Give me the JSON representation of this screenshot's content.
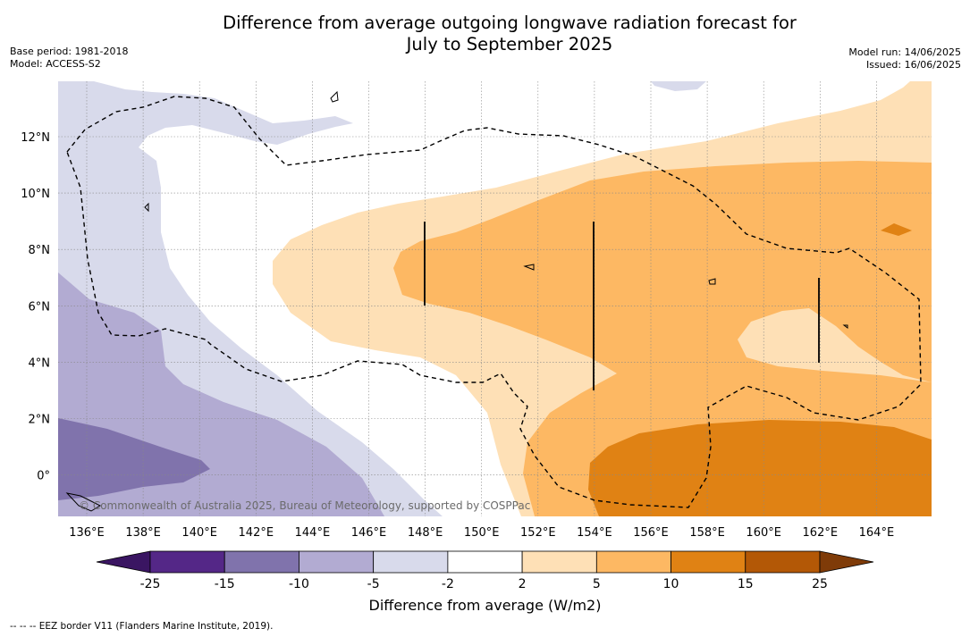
{
  "title": {
    "line1": "Difference from average outgoing longwave radiation forecast for",
    "line2": "July to September 2025"
  },
  "meta_left": {
    "base_period": "Base period: 1981-2018",
    "model": "Model: ACCESS-S2"
  },
  "meta_right": {
    "model_run": "Model run: 14/06/2025",
    "issued": "Issued: 16/06/2025"
  },
  "map": {
    "lon_labels": [
      "136°E",
      "138°E",
      "140°E",
      "142°E",
      "144°E",
      "146°E",
      "148°E",
      "150°E",
      "152°E",
      "154°E",
      "156°E",
      "158°E",
      "160°E",
      "162°E",
      "164°E"
    ],
    "lat_labels": [
      "12°N",
      "10°N",
      "8°N",
      "6°N",
      "4°N",
      "2°N",
      "0°"
    ],
    "copyright": "© Commonwealth of Australia 2025, Bureau of Meteorology, supported by COSPPac"
  },
  "colorbar": {
    "ticks": [
      "-25",
      "-15",
      "-10",
      "-5",
      "-2",
      "2",
      "5",
      "10",
      "15",
      "25"
    ],
    "colors": [
      "#3a1562",
      "#542787",
      "#8073ac",
      "#b2abd2",
      "#d8daeb",
      "#ffffff",
      "#fee0b6",
      "#fdb863",
      "#e08214",
      "#b35806",
      "#7f3b08"
    ],
    "label": "Difference from average (W/m2)"
  },
  "footnote": "-- -- -- EEZ border V11 (Flanders Marine Institute, 2019)."
}
